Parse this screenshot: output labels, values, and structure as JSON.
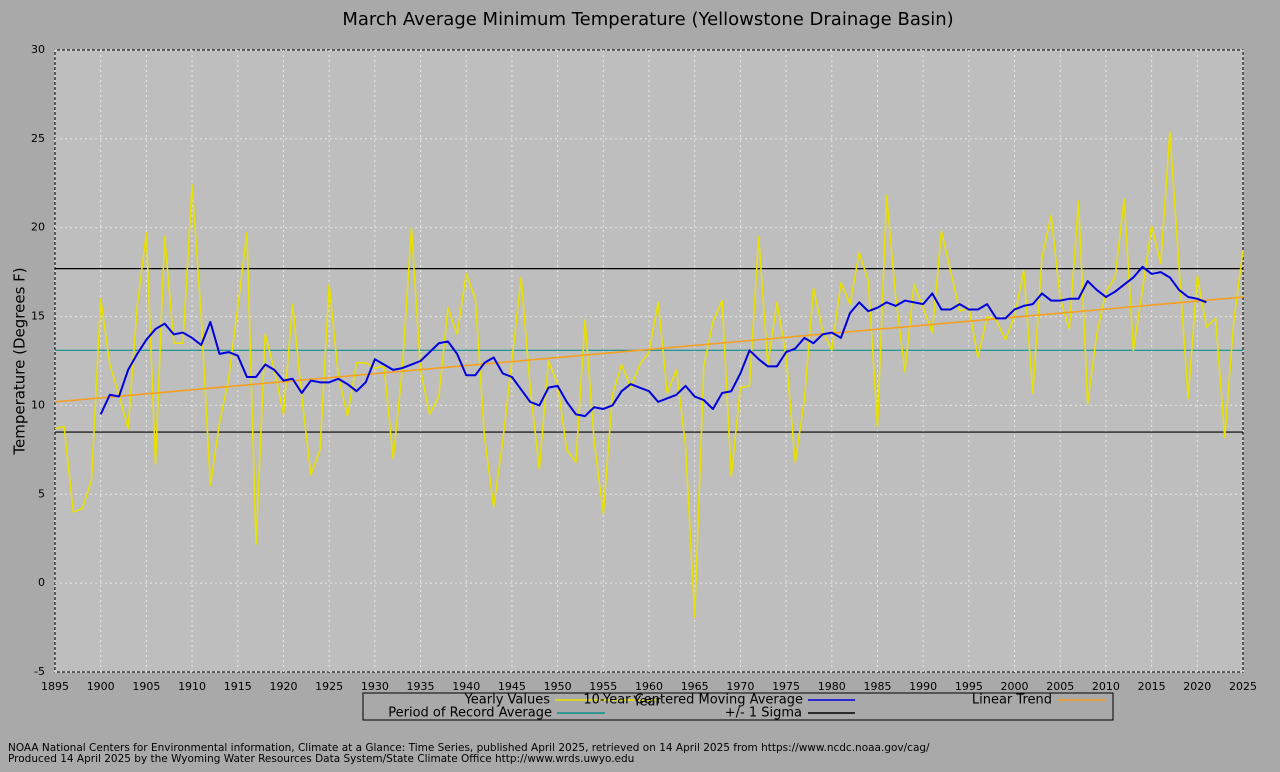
{
  "chart_data": {
    "type": "line",
    "title": "March Average Minimum Temperature (Yellowstone Drainage Basin)",
    "xlabel": "Year",
    "ylabel": "Temperature (Degrees F)",
    "footnotes": [
      "NOAA National Centers for Environmental information, Climate at a Glance: Time Series, published April 2025, retrieved on 14 April 2025 from https://www.ncdc.noaa.gov/cag/",
      "Produced 14 April 2025 by the Wyoming Water Resources Data System/State Climate Office http://www.wrds.uwyo.edu"
    ],
    "grid": true,
    "xlim": [
      1895,
      2025
    ],
    "ylim": [
      -5,
      30
    ],
    "xticks": [
      1895,
      1900,
      1905,
      1910,
      1915,
      1920,
      1925,
      1930,
      1935,
      1940,
      1945,
      1950,
      1955,
      1960,
      1965,
      1970,
      1975,
      1980,
      1985,
      1990,
      1995,
      2000,
      2005,
      2010,
      2015,
      2020,
      2025
    ],
    "yticks": [
      -5,
      0,
      5,
      10,
      15,
      20,
      25,
      30
    ],
    "x": [
      1895,
      1896,
      1897,
      1898,
      1899,
      1900,
      1901,
      1902,
      1903,
      1904,
      1905,
      1906,
      1907,
      1908,
      1909,
      1910,
      1911,
      1912,
      1913,
      1914,
      1915,
      1916,
      1917,
      1918,
      1919,
      1920,
      1921,
      1922,
      1923,
      1924,
      1925,
      1926,
      1927,
      1928,
      1929,
      1930,
      1931,
      1932,
      1933,
      1934,
      1935,
      1936,
      1937,
      1938,
      1939,
      1940,
      1941,
      1942,
      1943,
      1944,
      1945,
      1946,
      1947,
      1948,
      1949,
      1950,
      1951,
      1952,
      1953,
      1954,
      1955,
      1956,
      1957,
      1958,
      1959,
      1960,
      1961,
      1962,
      1963,
      1964,
      1965,
      1966,
      1967,
      1968,
      1969,
      1970,
      1971,
      1972,
      1973,
      1974,
      1975,
      1976,
      1977,
      1978,
      1979,
      1980,
      1981,
      1982,
      1983,
      1984,
      1985,
      1986,
      1987,
      1988,
      1989,
      1990,
      1991,
      1992,
      1993,
      1994,
      1995,
      1996,
      1997,
      1998,
      1999,
      2000,
      2001,
      2002,
      2003,
      2004,
      2005,
      2006,
      2007,
      2008,
      2009,
      2010,
      2011,
      2012,
      2013,
      2014,
      2015,
      2016,
      2017,
      2018,
      2019,
      2020,
      2021,
      2022,
      2023,
      2024,
      2025
    ],
    "series": [
      {
        "name": "Yearly Values",
        "color": "#e8e000",
        "values": [
          8.7,
          8.8,
          4.0,
          4.2,
          5.8,
          16.0,
          12.3,
          10.6,
          8.7,
          15.6,
          19.7,
          6.7,
          19.5,
          13.5,
          13.5,
          22.4,
          15.0,
          5.5,
          9.0,
          11.5,
          15.5,
          19.7,
          2.2,
          14.0,
          12.0,
          9.5,
          15.7,
          10.5,
          6.1,
          7.5,
          16.8,
          11.7,
          9.4,
          12.4,
          12.4,
          12.1,
          12.2,
          7.0,
          12.0,
          20.0,
          12.0,
          9.5,
          10.5,
          15.5,
          14.0,
          17.4,
          16.0,
          8.2,
          4.3,
          8.0,
          12.5,
          17.2,
          11.0,
          6.4,
          12.5,
          11.2,
          7.5,
          6.8,
          14.8,
          8.0,
          3.9,
          10.6,
          12.3,
          11.0,
          12.3,
          13.0,
          15.8,
          10.7,
          12.0,
          7.7,
          -1.9,
          12.2,
          14.7,
          15.9,
          6.0,
          11.0,
          11.1,
          19.5,
          12.3,
          15.8,
          12.8,
          6.8,
          10.3,
          16.6,
          14.2,
          13.1,
          16.9,
          15.7,
          18.6,
          17.0,
          8.8,
          21.8,
          16.1,
          11.9,
          16.8,
          15.5,
          14.1,
          19.8,
          17.6,
          15.3,
          15.5,
          12.7,
          15.0,
          14.8,
          13.7,
          15.0,
          17.6,
          10.7,
          18.3,
          20.7,
          16.0,
          14.3,
          21.5,
          10.1,
          14.0,
          16.4,
          17.2,
          21.6,
          13.1,
          16.5,
          20.1,
          18.0,
          25.4,
          17.8,
          10.4,
          17.3,
          14.4,
          14.9,
          8.2,
          14.8,
          18.7
        ]
      },
      {
        "name": "10-Year Centered Moving Average",
        "color": "#0000dd",
        "values": [
          null,
          null,
          null,
          null,
          null,
          9.5,
          10.6,
          10.5,
          12.0,
          12.9,
          13.7,
          14.3,
          14.6,
          14.0,
          14.1,
          13.8,
          13.4,
          14.7,
          12.9,
          13.0,
          12.8,
          11.6,
          11.6,
          12.3,
          12.0,
          11.4,
          11.5,
          10.7,
          11.4,
          11.3,
          11.3,
          11.5,
          11.2,
          10.8,
          11.3,
          12.6,
          12.3,
          12.0,
          12.1,
          12.3,
          12.5,
          13.0,
          13.5,
          13.6,
          12.9,
          11.7,
          11.7,
          12.4,
          12.7,
          11.8,
          11.6,
          10.9,
          10.2,
          10.0,
          11.0,
          11.1,
          10.2,
          9.5,
          9.4,
          9.9,
          9.8,
          10.0,
          10.8,
          11.2,
          11.0,
          10.8,
          10.2,
          10.4,
          10.6,
          11.1,
          10.5,
          10.3,
          9.8,
          10.7,
          10.8,
          11.8,
          13.1,
          12.6,
          12.2,
          12.2,
          13.0,
          13.2,
          13.8,
          13.5,
          14.0,
          14.1,
          13.8,
          15.2,
          15.8,
          15.3,
          15.5,
          15.8,
          15.6,
          15.9,
          15.8,
          15.7,
          16.3,
          15.4,
          15.4,
          15.7,
          15.4,
          15.4,
          15.7,
          14.9,
          14.9,
          15.4,
          15.6,
          15.7,
          16.3,
          15.9,
          15.9,
          16.0,
          16.0,
          17.0,
          16.5,
          16.1,
          16.4,
          16.8,
          17.2,
          17.8,
          17.4,
          17.5,
          17.2,
          16.5,
          16.1,
          16.0,
          15.8,
          null,
          null,
          null,
          null
        ]
      },
      {
        "name": "Linear Trend",
        "color": "#f5a020",
        "x": [
          1895,
          2025
        ],
        "values": [
          10.2,
          16.1
        ]
      },
      {
        "name": "Period of Record Average",
        "color": "#109090",
        "type": "hline",
        "levels": [
          13.1
        ]
      },
      {
        "name": "+/- 1 Sigma",
        "color": "#000000",
        "type": "hline",
        "levels": [
          17.7,
          8.5
        ]
      }
    ]
  }
}
